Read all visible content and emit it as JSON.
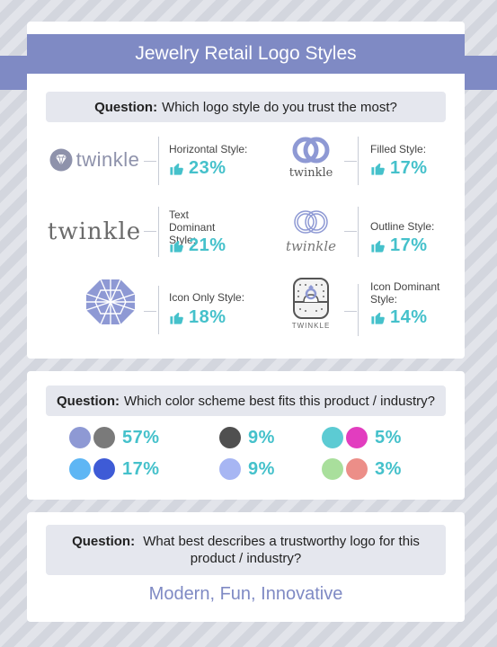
{
  "title": "Jewelry Retail Logo Styles",
  "question1": {
    "prefix": "Question:",
    "text": "Which logo style do you trust the most?"
  },
  "logo_styles": [
    {
      "label": "Horizontal Style:",
      "value": "23%",
      "logo_text": "twinkle"
    },
    {
      "label": "Text Dominant Style:",
      "value": "21%",
      "logo_text": "twinkle"
    },
    {
      "label": "Icon Only Style:",
      "value": "18%"
    },
    {
      "label": "Filled Style:",
      "value": "17%",
      "logo_text": "twinkle"
    },
    {
      "label": "Outline Style:",
      "value": "17%",
      "logo_text": "twinkle"
    },
    {
      "label": "Icon Dominant Style:",
      "value": "14%",
      "logo_text": "TWINKLE"
    }
  ],
  "question2": {
    "prefix": "Question:",
    "text": "Which color scheme best fits this product / industry?"
  },
  "color_schemes": [
    {
      "colors": [
        "#8e99d4",
        "#7a7a7a"
      ],
      "value": "57%"
    },
    {
      "colors": [
        "#505050"
      ],
      "value": "9%"
    },
    {
      "colors": [
        "#5ccbd3",
        "#e23dbf"
      ],
      "value": "5%"
    },
    {
      "colors": [
        "#5eb6f4",
        "#3e5bd6"
      ],
      "value": "17%"
    },
    {
      "colors": [
        "#a7b6f3"
      ],
      "value": "9%"
    },
    {
      "colors": [
        "#a9df9c",
        "#ec8e88"
      ],
      "value": "3%"
    }
  ],
  "question3": {
    "prefix": "Question:",
    "text": "What best describes a trustworthy logo for this product / industry?"
  },
  "answer3": "Modern, Fun, Innovative",
  "colors": {
    "accent": "#7f8ac4",
    "value": "#45c1cb"
  }
}
